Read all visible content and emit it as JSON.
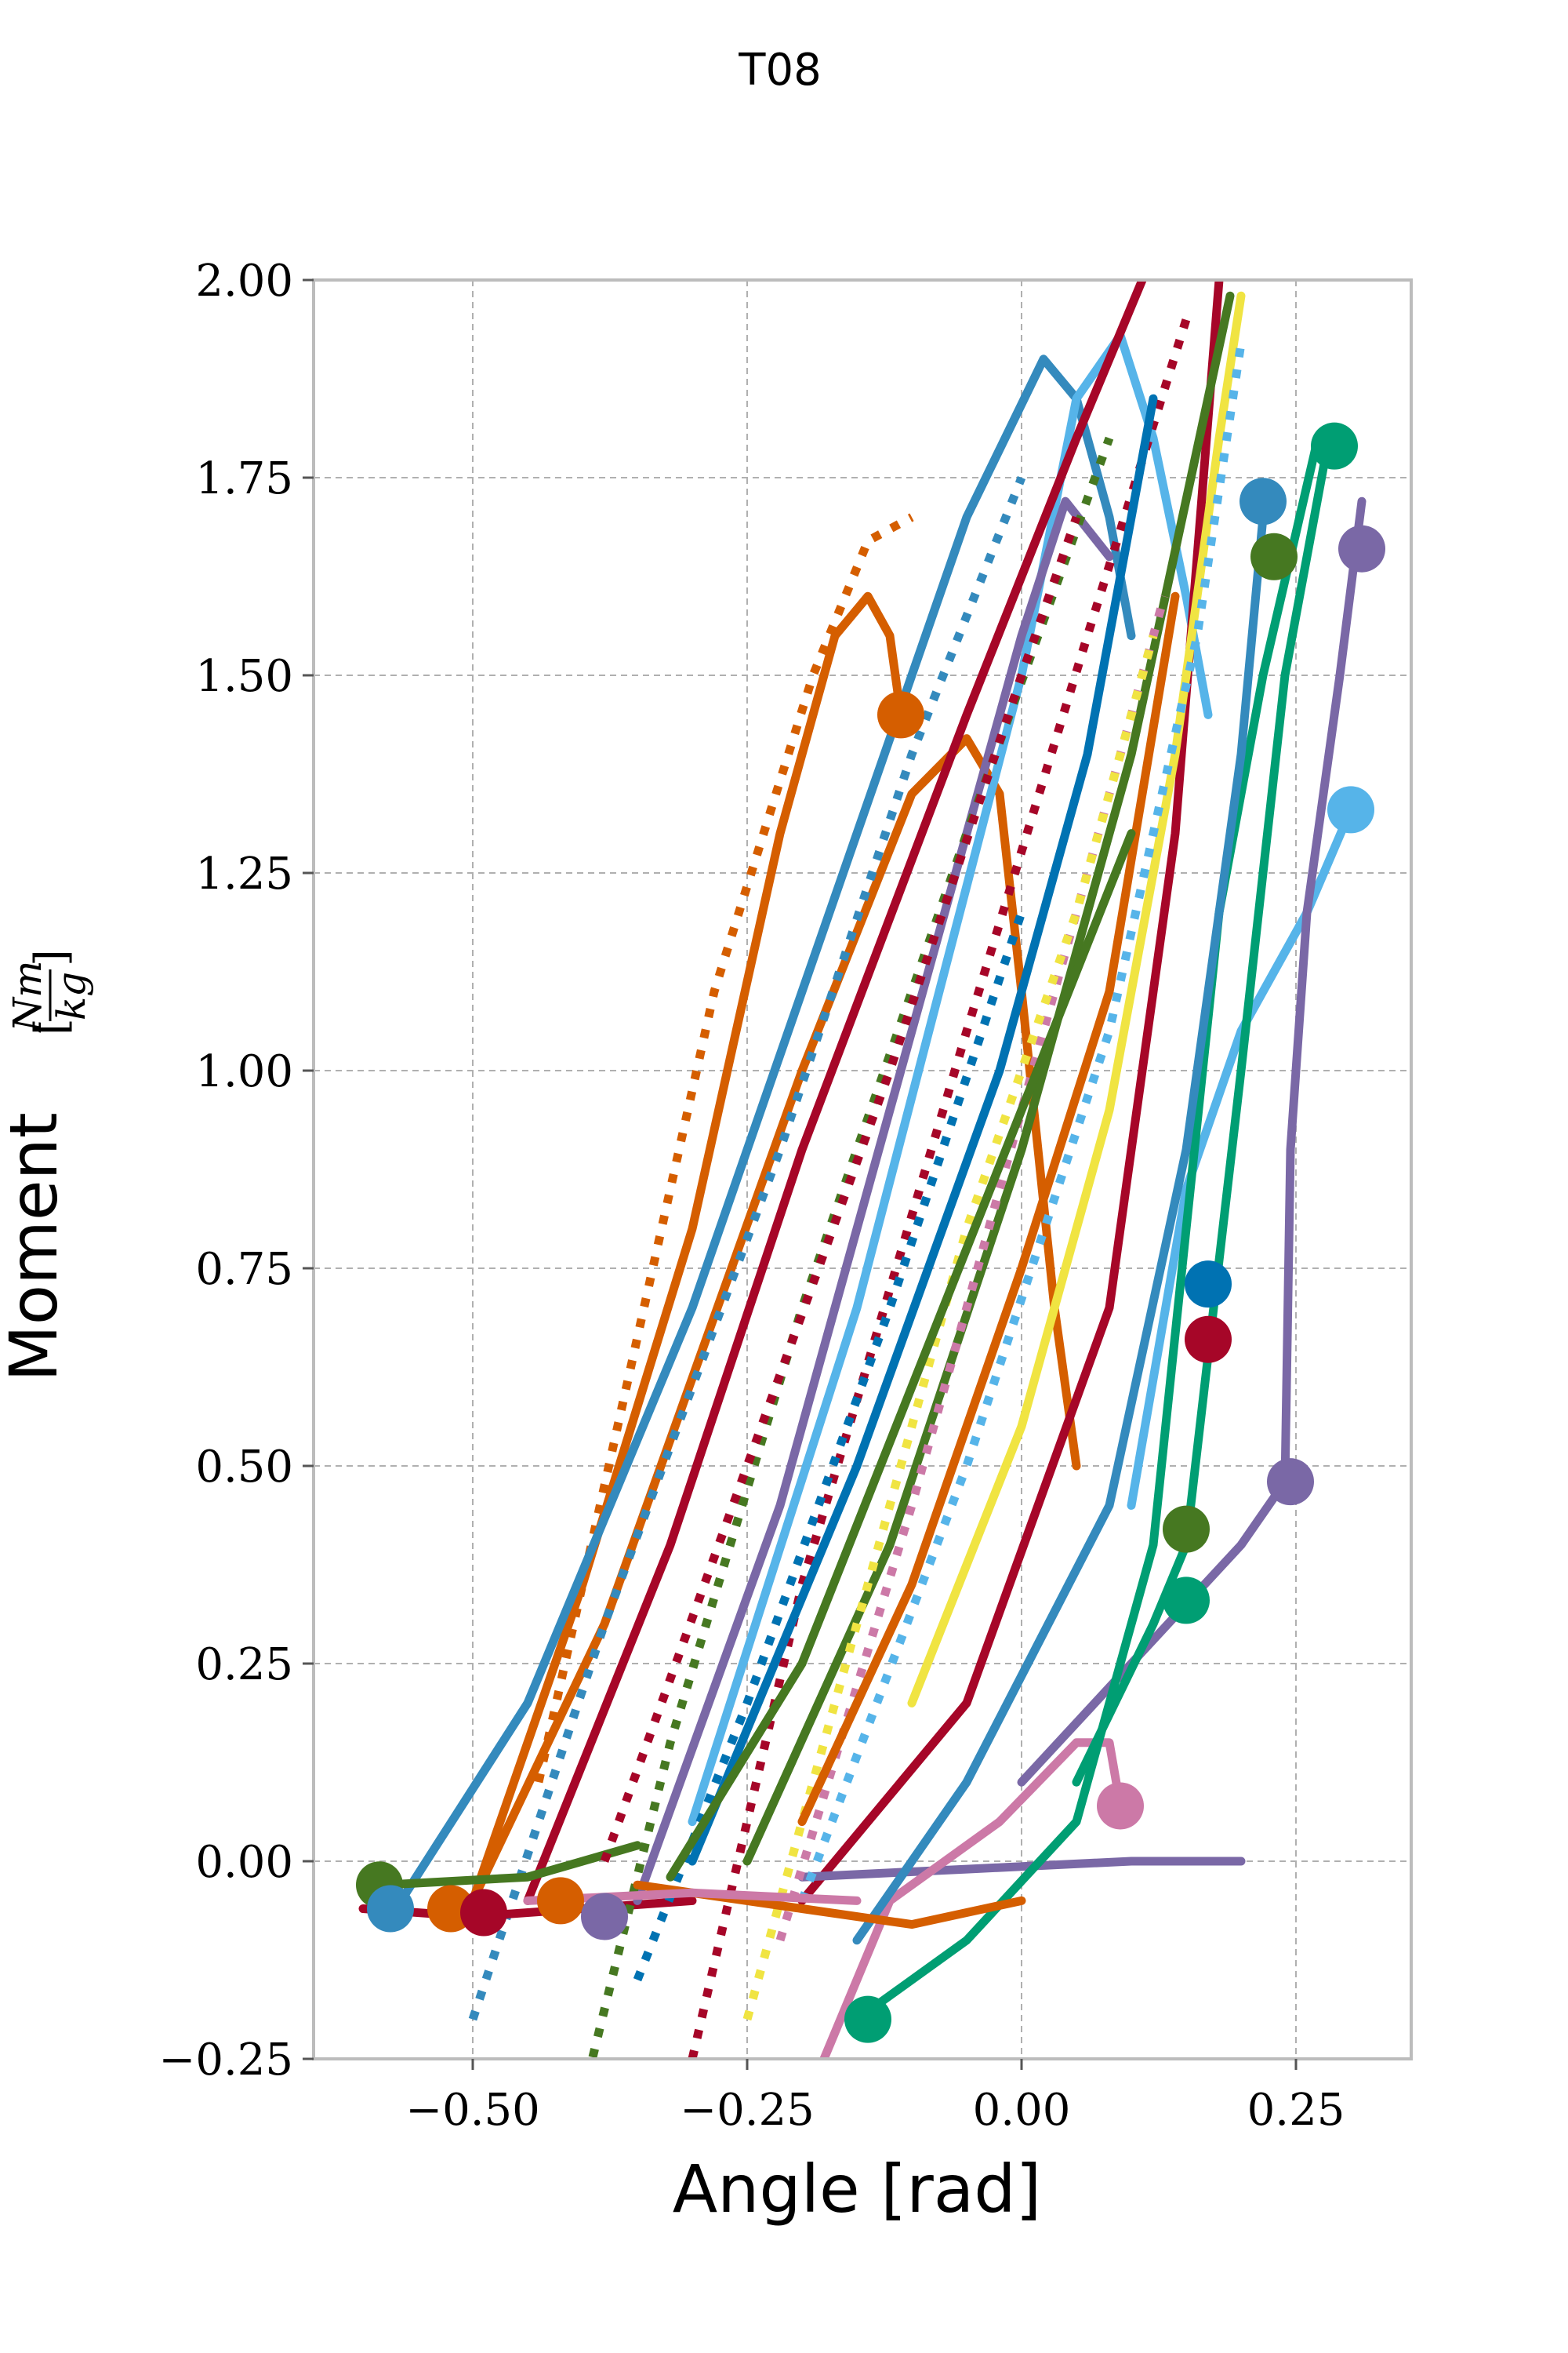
{
  "figure": {
    "title": "T08"
  },
  "chart_data": {
    "type": "line",
    "title": "T08",
    "xlabel": "Angle [rad]",
    "ylabel": "Moment",
    "ylabel_unit": {
      "numerator": "Nm",
      "denominator": "kg"
    },
    "xlim": [
      -0.645,
      0.355
    ],
    "ylim": [
      -0.25,
      2.0
    ],
    "xticks": [
      -0.5,
      -0.25,
      0.0,
      0.25
    ],
    "xtick_labels": [
      "−0.50",
      "−0.25",
      "0.00",
      "0.25"
    ],
    "yticks": [
      -0.25,
      0.0,
      0.25,
      0.5,
      0.75,
      1.0,
      1.25,
      1.5,
      1.75,
      2.0
    ],
    "ytick_labels": [
      "−0.25",
      "0.00",
      "0.25",
      "0.50",
      "0.75",
      "1.00",
      "1.25",
      "1.50",
      "1.75",
      "2.00"
    ],
    "grid": true,
    "legend": "none",
    "palette": [
      "#348ABD",
      "#A60628",
      "#7A68A6",
      "#467821",
      "#D55E00",
      "#CC79A7",
      "#56B4E9",
      "#009E73",
      "#F0E442",
      "#0072B2"
    ],
    "series": [
      {
        "color": "#D55E00",
        "style": "solid",
        "points": [
          [
            -0.5,
            -0.05
          ],
          [
            -0.4,
            0.35
          ],
          [
            -0.3,
            0.8
          ],
          [
            -0.22,
            1.3
          ],
          [
            -0.17,
            1.55
          ],
          [
            -0.14,
            1.6
          ],
          [
            -0.12,
            1.55
          ],
          [
            -0.11,
            1.45
          ]
        ]
      },
      {
        "color": "#D55E00",
        "style": "dotted",
        "points": [
          [
            -0.44,
            0.1
          ],
          [
            -0.36,
            0.6
          ],
          [
            -0.28,
            1.1
          ],
          [
            -0.19,
            1.5
          ],
          [
            -0.14,
            1.67
          ],
          [
            -0.1,
            1.7
          ]
        ]
      },
      {
        "color": "#D55E00",
        "style": "solid",
        "points": [
          [
            -0.5,
            -0.05
          ],
          [
            -0.38,
            0.3
          ],
          [
            -0.2,
            1.0
          ],
          [
            -0.1,
            1.35
          ],
          [
            -0.05,
            1.42
          ],
          [
            -0.02,
            1.35
          ],
          [
            0.0,
            1.1
          ],
          [
            0.03,
            0.7
          ],
          [
            0.05,
            0.5
          ]
        ]
      },
      {
        "color": "#348ABD",
        "style": "solid",
        "points": [
          [
            -0.57,
            -0.06
          ],
          [
            -0.45,
            0.2
          ],
          [
            -0.3,
            0.7
          ],
          [
            -0.15,
            1.3
          ],
          [
            -0.05,
            1.7
          ],
          [
            0.02,
            1.9
          ],
          [
            0.05,
            1.85
          ],
          [
            0.08,
            1.7
          ],
          [
            0.1,
            1.55
          ]
        ]
      },
      {
        "color": "#348ABD",
        "style": "dotted",
        "points": [
          [
            -0.5,
            -0.2
          ],
          [
            -0.38,
            0.3
          ],
          [
            -0.22,
            0.9
          ],
          [
            -0.1,
            1.4
          ],
          [
            0.0,
            1.75
          ]
        ]
      },
      {
        "color": "#56B4E9",
        "style": "solid",
        "points": [
          [
            -0.3,
            0.05
          ],
          [
            -0.15,
            0.7
          ],
          [
            0.0,
            1.5
          ],
          [
            0.05,
            1.85
          ],
          [
            0.09,
            1.93
          ],
          [
            0.12,
            1.8
          ],
          [
            0.15,
            1.6
          ],
          [
            0.17,
            1.45
          ]
        ]
      },
      {
        "color": "#56B4E9",
        "style": "solid",
        "points": [
          [
            0.1,
            0.45
          ],
          [
            0.15,
            0.85
          ],
          [
            0.2,
            1.05
          ],
          [
            0.26,
            1.2
          ],
          [
            0.3,
            1.33
          ]
        ]
      },
      {
        "color": "#A60628",
        "style": "solid",
        "points": [
          [
            -0.45,
            -0.05
          ],
          [
            -0.32,
            0.4
          ],
          [
            -0.2,
            0.9
          ],
          [
            -0.05,
            1.45
          ],
          [
            0.05,
            1.8
          ],
          [
            0.11,
            2.0
          ]
        ]
      },
      {
        "color": "#A60628",
        "style": "dotted",
        "points": [
          [
            -0.3,
            -0.25
          ],
          [
            -0.2,
            0.35
          ],
          [
            -0.05,
            1.05
          ],
          [
            0.06,
            1.55
          ],
          [
            0.15,
            1.95
          ]
        ]
      },
      {
        "color": "#A60628",
        "style": "solid",
        "points": [
          [
            -0.2,
            -0.05
          ],
          [
            -0.05,
            0.2
          ],
          [
            0.08,
            0.7
          ],
          [
            0.14,
            1.3
          ],
          [
            0.18,
            2.0
          ]
        ]
      },
      {
        "color": "#A60628",
        "style": "solid",
        "points": [
          [
            -0.6,
            -0.06
          ],
          [
            -0.5,
            -0.07
          ],
          [
            -0.4,
            -0.06
          ],
          [
            -0.3,
            -0.05
          ]
        ]
      },
      {
        "color": "#7A68A6",
        "style": "solid",
        "points": [
          [
            -0.35,
            -0.05
          ],
          [
            -0.22,
            0.45
          ],
          [
            -0.1,
            1.05
          ],
          [
            0.0,
            1.55
          ],
          [
            0.04,
            1.72
          ],
          [
            0.08,
            1.65
          ]
        ]
      },
      {
        "color": "#7A68A6",
        "style": "solid",
        "points": [
          [
            0.0,
            0.1
          ],
          [
            0.1,
            0.25
          ],
          [
            0.2,
            0.4
          ],
          [
            0.24,
            0.48
          ],
          [
            0.245,
            0.9
          ],
          [
            0.26,
            1.2
          ],
          [
            0.29,
            1.5
          ],
          [
            0.31,
            1.72
          ]
        ]
      },
      {
        "color": "#7A68A6",
        "style": "solid",
        "points": [
          [
            -0.2,
            -0.02
          ],
          [
            -0.05,
            -0.01
          ],
          [
            0.1,
            0.0
          ],
          [
            0.2,
            0.0
          ]
        ]
      },
      {
        "color": "#467821",
        "style": "solid",
        "points": [
          [
            -0.58,
            -0.03
          ],
          [
            -0.45,
            -0.02
          ],
          [
            -0.35,
            0.02
          ]
        ]
      },
      {
        "color": "#467821",
        "style": "dotted",
        "points": [
          [
            -0.4,
            -0.3
          ],
          [
            -0.32,
            0.15
          ],
          [
            -0.2,
            0.7
          ],
          [
            -0.05,
            1.3
          ],
          [
            0.08,
            1.8
          ]
        ]
      },
      {
        "color": "#467821",
        "style": "solid",
        "points": [
          [
            -0.25,
            0.0
          ],
          [
            -0.12,
            0.4
          ],
          [
            0.0,
            0.9
          ],
          [
            0.1,
            1.4
          ],
          [
            0.19,
            1.98
          ]
        ]
      },
      {
        "color": "#CC79A7",
        "style": "solid",
        "points": [
          [
            -0.18,
            -0.25
          ],
          [
            -0.12,
            -0.05
          ],
          [
            -0.02,
            0.05
          ],
          [
            0.05,
            0.15
          ],
          [
            0.08,
            0.15
          ],
          [
            0.09,
            0.07
          ]
        ]
      },
      {
        "color": "#CC79A7",
        "style": "dotted",
        "points": [
          [
            -0.22,
            -0.1
          ],
          [
            -0.1,
            0.45
          ],
          [
            0.0,
            0.95
          ],
          [
            0.08,
            1.35
          ],
          [
            0.13,
            1.6
          ]
        ]
      },
      {
        "color": "#009E73",
        "style": "solid",
        "points": [
          [
            -0.15,
            -0.2
          ],
          [
            -0.05,
            -0.1
          ],
          [
            0.05,
            0.05
          ],
          [
            0.12,
            0.4
          ],
          [
            0.15,
            0.8
          ],
          [
            0.18,
            1.2
          ],
          [
            0.22,
            1.5
          ],
          [
            0.27,
            1.8
          ]
        ]
      },
      {
        "color": "#009E73",
        "style": "solid",
        "points": [
          [
            0.05,
            0.1
          ],
          [
            0.12,
            0.3
          ],
          [
            0.15,
            0.4
          ],
          [
            0.2,
            1.0
          ],
          [
            0.24,
            1.5
          ],
          [
            0.28,
            1.8
          ]
        ]
      },
      {
        "color": "#F0E442",
        "style": "solid",
        "points": [
          [
            -0.1,
            0.2
          ],
          [
            0.0,
            0.55
          ],
          [
            0.08,
            0.95
          ],
          [
            0.14,
            1.4
          ],
          [
            0.18,
            1.8
          ],
          [
            0.2,
            1.98
          ]
        ]
      },
      {
        "color": "#F0E442",
        "style": "dotted",
        "points": [
          [
            -0.25,
            -0.2
          ],
          [
            -0.15,
            0.3
          ],
          [
            -0.05,
            0.8
          ],
          [
            0.05,
            1.2
          ],
          [
            0.12,
            1.55
          ]
        ]
      },
      {
        "color": "#0072B2",
        "style": "solid",
        "points": [
          [
            -0.3,
            0.0
          ],
          [
            -0.15,
            0.5
          ],
          [
            -0.02,
            1.0
          ],
          [
            0.06,
            1.4
          ],
          [
            0.12,
            1.85
          ]
        ]
      },
      {
        "color": "#0072B2",
        "style": "dotted",
        "points": [
          [
            -0.35,
            -0.15
          ],
          [
            -0.25,
            0.2
          ],
          [
            -0.12,
            0.7
          ],
          [
            0.0,
            1.2
          ]
        ]
      },
      {
        "color": "#348ABD",
        "style": "solid",
        "points": [
          [
            -0.15,
            -0.1
          ],
          [
            -0.05,
            0.1
          ],
          [
            0.08,
            0.45
          ],
          [
            0.15,
            0.9
          ],
          [
            0.2,
            1.4
          ],
          [
            0.22,
            1.7
          ]
        ]
      },
      {
        "color": "#D55E00",
        "style": "solid",
        "points": [
          [
            -0.2,
            0.05
          ],
          [
            -0.1,
            0.35
          ],
          [
            0.0,
            0.75
          ],
          [
            0.08,
            1.1
          ],
          [
            0.14,
            1.6
          ]
        ]
      },
      {
        "color": "#467821",
        "style": "solid",
        "points": [
          [
            -0.32,
            -0.02
          ],
          [
            -0.2,
            0.25
          ],
          [
            -0.1,
            0.6
          ],
          [
            0.0,
            0.95
          ],
          [
            0.1,
            1.3
          ]
        ]
      },
      {
        "color": "#A60628",
        "style": "dotted",
        "points": [
          [
            -0.38,
            0.0
          ],
          [
            -0.25,
            0.5
          ],
          [
            -0.12,
            1.0
          ],
          [
            0.0,
            1.5
          ],
          [
            0.05,
            1.7
          ]
        ]
      },
      {
        "color": "#56B4E9",
        "style": "dotted",
        "points": [
          [
            -0.2,
            -0.05
          ],
          [
            -0.05,
            0.5
          ],
          [
            0.08,
            1.05
          ],
          [
            0.16,
            1.55
          ],
          [
            0.2,
            1.92
          ]
        ]
      },
      {
        "color": "#D55E00",
        "style": "solid",
        "points": [
          [
            -0.35,
            -0.03
          ],
          [
            -0.2,
            -0.06
          ],
          [
            -0.1,
            -0.08
          ],
          [
            0.0,
            -0.05
          ]
        ]
      },
      {
        "color": "#CC79A7",
        "style": "solid",
        "points": [
          [
            -0.45,
            -0.05
          ],
          [
            -0.3,
            -0.04
          ],
          [
            -0.15,
            -0.05
          ]
        ]
      }
    ],
    "end_markers": [
      {
        "x": -0.585,
        "y": -0.03,
        "color": "#467821"
      },
      {
        "x": -0.575,
        "y": -0.06,
        "color": "#348ABD"
      },
      {
        "x": -0.52,
        "y": -0.06,
        "color": "#D55E00"
      },
      {
        "x": -0.49,
        "y": -0.065,
        "color": "#A60628"
      },
      {
        "x": -0.42,
        "y": -0.05,
        "color": "#D55E00"
      },
      {
        "x": -0.38,
        "y": -0.07,
        "color": "#7A68A6"
      },
      {
        "x": -0.11,
        "y": 1.45,
        "color": "#D55E00"
      },
      {
        "x": 0.22,
        "y": 1.72,
        "color": "#348ABD"
      },
      {
        "x": 0.23,
        "y": 1.65,
        "color": "#467821"
      },
      {
        "x": 0.285,
        "y": 1.79,
        "color": "#009E73"
      },
      {
        "x": 0.31,
        "y": 1.66,
        "color": "#7A68A6"
      },
      {
        "x": 0.3,
        "y": 1.33,
        "color": "#56B4E9"
      },
      {
        "x": 0.245,
        "y": 0.48,
        "color": "#7A68A6"
      },
      {
        "x": 0.15,
        "y": 0.42,
        "color": "#467821"
      },
      {
        "x": 0.15,
        "y": 0.33,
        "color": "#009E73"
      },
      {
        "x": 0.09,
        "y": 0.07,
        "color": "#CC79A7"
      },
      {
        "x": -0.14,
        "y": -0.2,
        "color": "#009E73"
      },
      {
        "x": 0.17,
        "y": 0.66,
        "color": "#A60628"
      },
      {
        "x": 0.17,
        "y": 0.73,
        "color": "#0072B2"
      }
    ]
  }
}
